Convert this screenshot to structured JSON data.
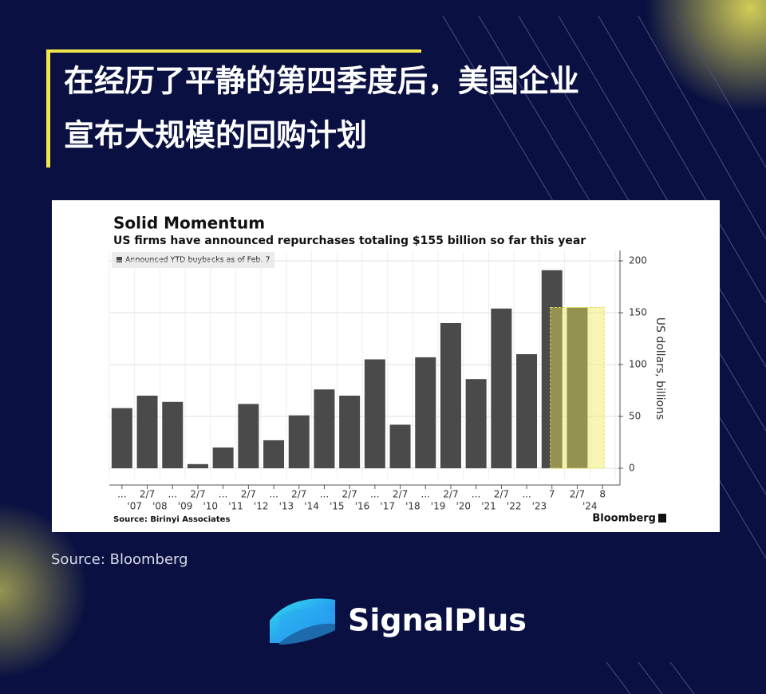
{
  "header": {
    "title_lines": [
      "在经历了平静的第四季度后，美国企业",
      "宣布大规模的回购计划"
    ]
  },
  "chart_data": {
    "type": "bar",
    "title": "Solid Momentum",
    "subtitle": "US firms have announced repurchases totaling $155 billion so far this year",
    "legend": "Announced YTD buybacks as of Feb. 7",
    "y_axis_label": "US dollars, billions",
    "categories": [
      "...",
      "2/7",
      "...",
      "2/7",
      "...",
      "2/7",
      "...",
      "2/7",
      "...",
      "2/7",
      "...",
      "2/7",
      "...",
      "2/7",
      "...",
      "2/7",
      "...",
      "7",
      "2/7",
      "8"
    ],
    "year_labels": [
      "'07",
      "'08",
      "'09",
      "'10",
      "'11",
      "'12",
      "'13",
      "'14",
      "'15",
      "'16",
      "'17",
      "'18",
      "'19",
      "'20",
      "'21",
      "'22",
      "'23",
      "'24"
    ],
    "values": [
      58,
      70,
      64,
      4,
      20,
      62,
      27,
      51,
      76,
      70,
      105,
      42,
      107,
      140,
      86,
      154,
      110,
      191,
      155,
      null
    ],
    "color": "#4a4a4a",
    "ylim": [
      -10,
      210
    ],
    "yticks": [
      0,
      50,
      100,
      150,
      200
    ],
    "grid": true,
    "source": "Source: Birinyi Associates",
    "brand": "Bloomberg"
  },
  "footer": {
    "source": "Source: Bloomberg",
    "logo_text": "SignalPlus"
  }
}
